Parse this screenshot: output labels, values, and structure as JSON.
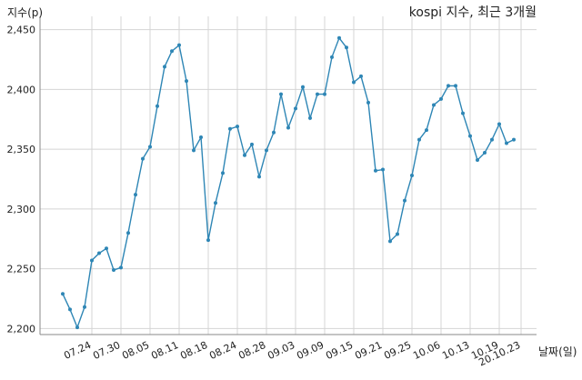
{
  "chart_data": {
    "type": "line",
    "title": "kospi 지수, 최근 3개월",
    "xlabel": "날짜(일)",
    "ylabel": "지수(p)",
    "ylim": [
      2195,
      2455
    ],
    "yticks": [
      2200,
      2250,
      2300,
      2350,
      2400,
      2450
    ],
    "ytick_labels": [
      "2,200",
      "2,250",
      "2,300",
      "2,350",
      "2,400",
      "2,450"
    ],
    "xtick_labels": [
      "07.24",
      "07.30",
      "08.05",
      "08.11",
      "08.18",
      "08.24",
      "08.28",
      "09.03",
      "09.09",
      "09.15",
      "09.21",
      "09.25",
      "10.06",
      "10.13",
      "10.19",
      "20.10.23"
    ],
    "xtick_index": [
      4,
      8,
      12,
      16,
      20,
      24,
      28,
      32,
      36,
      40,
      44,
      48,
      52,
      56,
      60,
      63
    ],
    "grid": true,
    "color": "#2e86b5",
    "series": [
      {
        "values": [
          2229,
          2216,
          2201,
          2218,
          2257,
          2263,
          2267,
          2249,
          2251,
          2280,
          2312,
          2342,
          2352,
          2386,
          2419,
          2432,
          2437,
          2407,
          2349,
          2360,
          2274,
          2305,
          2330,
          2367,
          2369,
          2345,
          2354,
          2327,
          2349,
          2364,
          2396,
          2368,
          2384,
          2402,
          2376,
          2396,
          2396,
          2427,
          2443,
          2435,
          2406,
          2411,
          2389,
          2332,
          2333,
          2273,
          2279,
          2307,
          2328,
          2358,
          2366,
          2387,
          2392,
          2403,
          2403,
          2380,
          2361,
          2341,
          2347,
          2358,
          2371,
          2355,
          2358
        ]
      }
    ]
  }
}
